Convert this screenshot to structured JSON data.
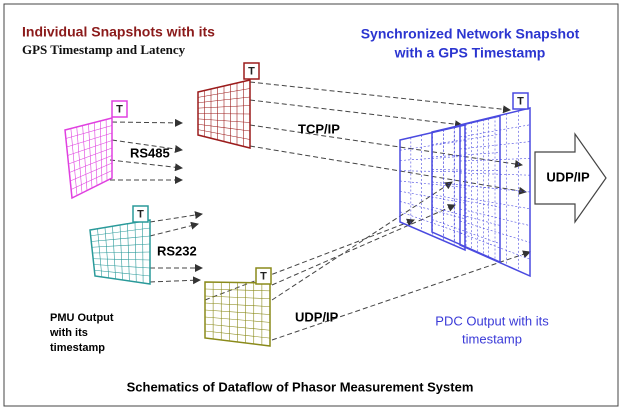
{
  "title": {
    "line1": "Individual Snapshots with its",
    "line2": "GPS Timestamp and Latency"
  },
  "pdc_title": {
    "line1": "Synchronized Network Snapshot",
    "line2": "with a GPS Timestamp"
  },
  "links": [
    "RS485",
    "TCP/IP",
    "RS232",
    "UDP/IP"
  ],
  "output_label": "UDP/IP",
  "pmu_note": [
    "PMU Output",
    "with its",
    "timestamp"
  ],
  "pdc_note": [
    "PDC Output with its",
    "timestamp"
  ],
  "snapshot_tags": [
    "T",
    "T",
    "T",
    "T",
    "T"
  ],
  "caption": "Schematics of Dataflow of Phasor Measurement System"
}
